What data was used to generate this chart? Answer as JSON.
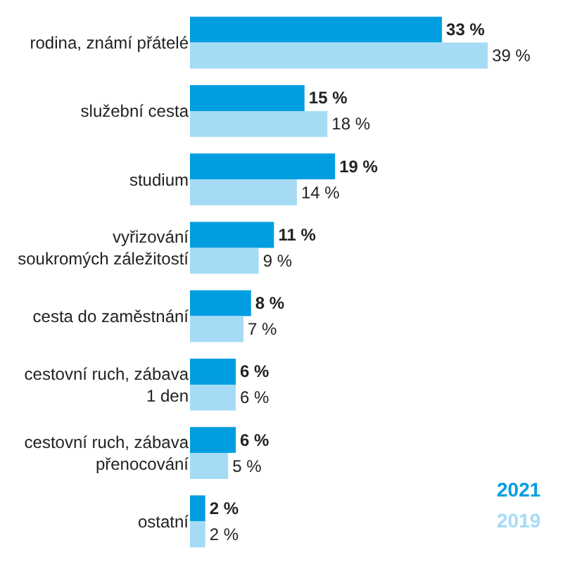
{
  "chart_data": {
    "type": "bar",
    "orientation": "horizontal",
    "categories": [
      "rodina, známí přátelé",
      "služební cesta",
      "studium",
      "vyřizování\nsoukromých záležitostí",
      "cesta do zaměstnání",
      "cestovní ruch, zábava\n1 den",
      "cestovní ruch, zábava\npřenocování",
      "ostatní"
    ],
    "series": [
      {
        "name": "2021",
        "color": "#009ee0",
        "values": [
          33,
          15,
          19,
          11,
          8,
          6,
          6,
          2
        ],
        "value_labels": [
          "33 %",
          "15 %",
          "19 %",
          "11 %",
          "8 %",
          "6 %",
          "6 %",
          "2 %"
        ]
      },
      {
        "name": "2019",
        "color": "#a6dbf5",
        "values": [
          39,
          18,
          14,
          9,
          7,
          6,
          5,
          2
        ],
        "value_labels": [
          "39 %",
          "18 %",
          "14 %",
          "9 %",
          "7 %",
          "6 %",
          "5 %",
          "2 %"
        ]
      }
    ],
    "legend": "bottom right"
  }
}
